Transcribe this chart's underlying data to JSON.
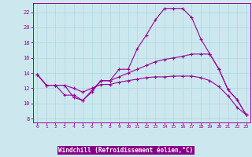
{
  "xlabel": "Windchill (Refroidissement éolien,°C)",
  "background_color": "#cce8ee",
  "label_bg_color": "#7700aa",
  "line_color": "#990099",
  "xlim": [
    -0.5,
    23.5
  ],
  "ylim": [
    7.5,
    23.2
  ],
  "xticks": [
    0,
    1,
    2,
    3,
    4,
    5,
    6,
    7,
    8,
    9,
    10,
    11,
    12,
    13,
    14,
    15,
    16,
    17,
    18,
    19,
    20,
    21,
    22,
    23
  ],
  "yticks": [
    8,
    10,
    12,
    14,
    16,
    18,
    20,
    22
  ],
  "grid_color": "#aad8e0",
  "line1_x": [
    0,
    1,
    2,
    3,
    4,
    5,
    6,
    7,
    8,
    9,
    10,
    11,
    12,
    13,
    14,
    15,
    16,
    17,
    18,
    19,
    20,
    21,
    22,
    23
  ],
  "line1_y": [
    13.8,
    12.4,
    12.4,
    11.1,
    11.1,
    10.4,
    11.7,
    13.0,
    13.0,
    14.5,
    14.5,
    17.2,
    19.0,
    21.0,
    22.5,
    22.5,
    22.5,
    21.3,
    18.5,
    16.5,
    14.5,
    11.8,
    10.5,
    8.5
  ],
  "line2_x": [
    0,
    1,
    2,
    3,
    4,
    5,
    6,
    7,
    8,
    9,
    10,
    11,
    12,
    13,
    14,
    15,
    16,
    17,
    18,
    19,
    20,
    21,
    22,
    23
  ],
  "line2_y": [
    13.8,
    12.4,
    12.4,
    12.4,
    10.8,
    10.4,
    11.5,
    13.0,
    13.0,
    13.5,
    14.0,
    14.5,
    15.0,
    15.5,
    15.8,
    16.0,
    16.2,
    16.5,
    16.5,
    16.5,
    14.5,
    11.8,
    10.5,
    8.5
  ],
  "line3_x": [
    0,
    1,
    2,
    3,
    4,
    5,
    6,
    7,
    8,
    9,
    10,
    11,
    12,
    13,
    14,
    15,
    16,
    17,
    18,
    19,
    20,
    21,
    22,
    23
  ],
  "line3_y": [
    13.8,
    12.4,
    12.4,
    12.4,
    12.0,
    11.5,
    12.0,
    12.5,
    12.5,
    12.8,
    13.0,
    13.2,
    13.4,
    13.5,
    13.5,
    13.6,
    13.6,
    13.6,
    13.4,
    13.0,
    12.2,
    11.0,
    9.5,
    8.5
  ]
}
